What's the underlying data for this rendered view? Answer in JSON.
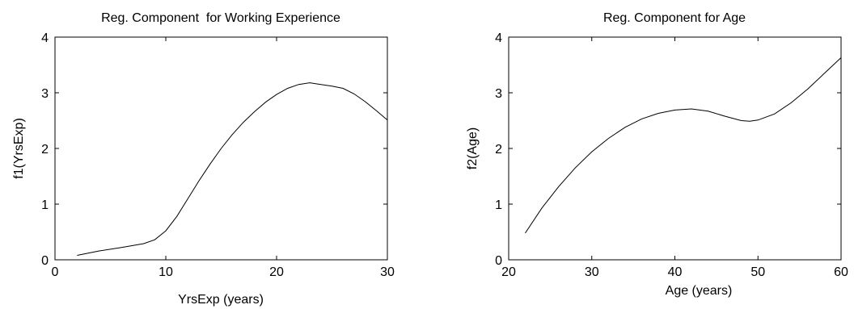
{
  "chart_data": [
    {
      "type": "line",
      "title": "Reg. Component  for Working Experience",
      "xlabel": "YrsExp (years)",
      "ylabel": "f1(YrsExp)",
      "xlim": [
        0,
        30
      ],
      "ylim": [
        0,
        4
      ],
      "xticks": [
        0,
        10,
        20,
        30
      ],
      "yticks": [
        0,
        1,
        2,
        3,
        4
      ],
      "grid": false,
      "line_color": "#000000",
      "series": [
        {
          "x": [
            2,
            4,
            6,
            8,
            9,
            10,
            11,
            12,
            13,
            14,
            15,
            16,
            17,
            18,
            19,
            20,
            21,
            22,
            23,
            24,
            25,
            26,
            27,
            28,
            29,
            30
          ],
          "y": [
            0.08,
            0.16,
            0.22,
            0.29,
            0.36,
            0.52,
            0.78,
            1.1,
            1.42,
            1.72,
            2.0,
            2.25,
            2.47,
            2.66,
            2.83,
            2.97,
            3.08,
            3.15,
            3.18,
            3.15,
            3.12,
            3.08,
            2.98,
            2.84,
            2.68,
            2.51
          ]
        }
      ]
    },
    {
      "type": "line",
      "title": "Reg. Component for Age",
      "xlabel": "Age (years)",
      "ylabel": "f2(Age)",
      "xlim": [
        20,
        60
      ],
      "ylim": [
        0,
        4
      ],
      "xticks": [
        20,
        30,
        40,
        50,
        60
      ],
      "yticks": [
        0,
        1,
        2,
        3,
        4
      ],
      "grid": false,
      "line_color": "#000000",
      "series": [
        {
          "x": [
            22,
            24,
            26,
            28,
            30,
            32,
            34,
            36,
            38,
            40,
            42,
            44,
            46,
            48,
            49,
            50,
            52,
            54,
            56,
            58,
            60
          ],
          "y": [
            0.48,
            0.93,
            1.31,
            1.65,
            1.94,
            2.18,
            2.38,
            2.53,
            2.63,
            2.69,
            2.71,
            2.67,
            2.58,
            2.5,
            2.49,
            2.51,
            2.62,
            2.82,
            3.07,
            3.35,
            3.63
          ]
        }
      ]
    }
  ]
}
